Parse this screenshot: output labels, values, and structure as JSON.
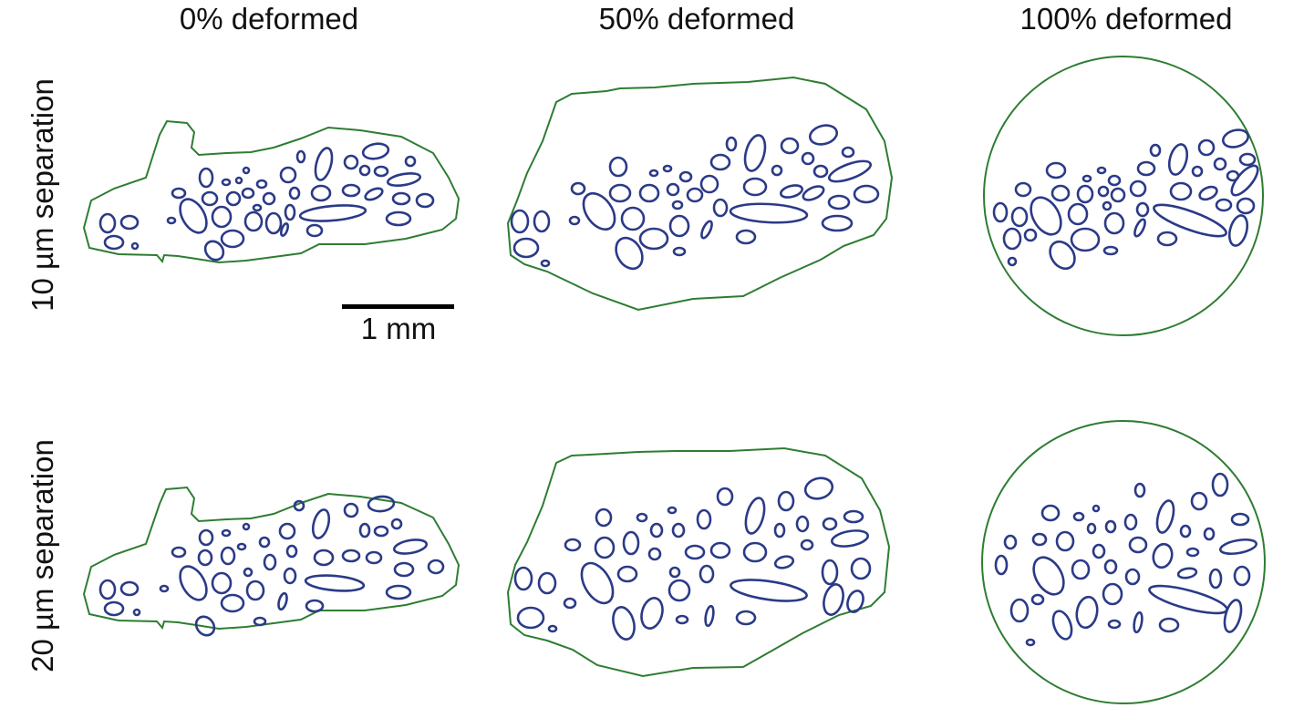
{
  "columns": {
    "c0": "0% deformed",
    "c50": "50% deformed",
    "c100": "100% deformed"
  },
  "rows": {
    "r10": "10 µm separation",
    "r20": "20 µm separation"
  },
  "scale_bar": {
    "label": "1 mm"
  },
  "colors": {
    "boundary": "#2e7d32",
    "cells": "#2b3a87"
  }
}
